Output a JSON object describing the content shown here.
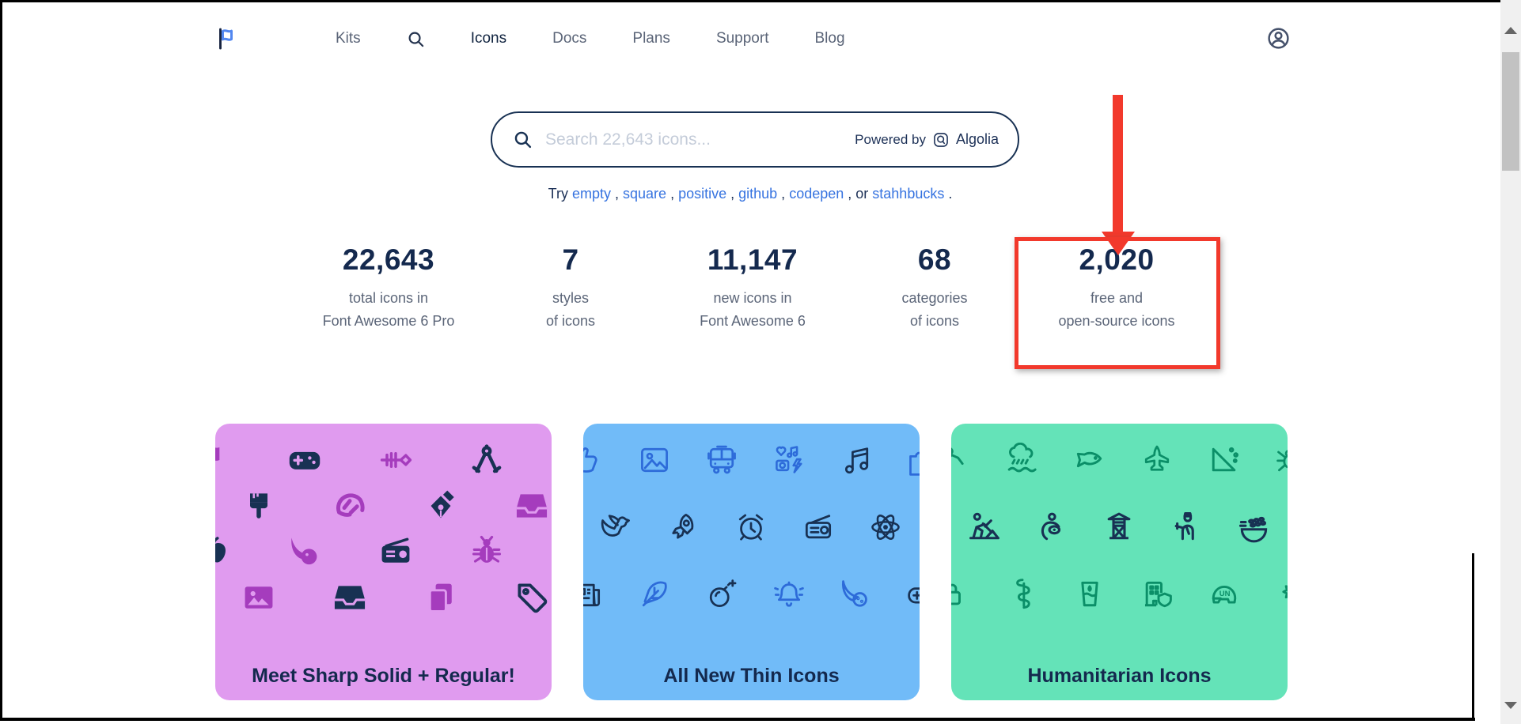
{
  "nav": {
    "logo_icon": "font-awesome-flag",
    "items": [
      {
        "label": "Kits"
      },
      {
        "icon": "search"
      },
      {
        "label": "Icons",
        "active": true
      },
      {
        "label": "Docs"
      },
      {
        "label": "Plans"
      },
      {
        "label": "Support"
      },
      {
        "label": "Blog"
      }
    ],
    "user_icon": "circle-user"
  },
  "search": {
    "placeholder": "Search 22,643 icons...",
    "powered_by": "Powered by",
    "provider": "Algolia"
  },
  "suggestions": {
    "prefix": "Try ",
    "links": [
      "empty",
      "square",
      "positive",
      "github",
      "codepen",
      "stahhbucks"
    ],
    "separators": [
      " , ",
      " , ",
      " , ",
      " , ",
      " , or ",
      " ."
    ]
  },
  "stats": [
    {
      "value": "22,643",
      "line1": "total icons in",
      "line2": "Font Awesome 6 Pro"
    },
    {
      "value": "7",
      "line1": "styles",
      "line2": "of icons"
    },
    {
      "value": "11,147",
      "line1": "new icons in",
      "line2": "Font Awesome 6"
    },
    {
      "value": "68",
      "line1": "categories",
      "line2": "of icons"
    },
    {
      "value": "2,020",
      "line1": "free and",
      "line2": "open-source icons",
      "highlighted": true
    }
  ],
  "annotation": {
    "type": "red-arrow-and-box",
    "highlighted_stat": "2,020",
    "color": "#f2392c"
  },
  "cards": [
    {
      "title": "Meet Sharp Solid + Regular!",
      "bg": "#e09bef",
      "accent": "#a53cbd",
      "dark": "#183153",
      "rows": [
        [
          {
            "name": "flag",
            "tone": "accent"
          },
          {
            "name": "gamepad",
            "tone": "dark"
          },
          {
            "name": "fish-bone",
            "tone": "accent"
          },
          {
            "name": "drafting-compass",
            "tone": "dark"
          }
        ],
        [
          {
            "name": "brush",
            "tone": "dark"
          },
          {
            "name": "croissant",
            "tone": "accent"
          },
          {
            "name": "pen-nib",
            "tone": "dark"
          },
          {
            "name": "inbox",
            "tone": "accent"
          }
        ],
        [
          {
            "name": "apple-whole",
            "tone": "dark"
          },
          {
            "name": "comet",
            "tone": "accent"
          },
          {
            "name": "radio",
            "tone": "dark"
          },
          {
            "name": "bug",
            "tone": "accent"
          }
        ],
        [
          {
            "name": "image",
            "tone": "accent"
          },
          {
            "name": "inbox",
            "tone": "dark"
          },
          {
            "name": "copy",
            "tone": "accent"
          },
          {
            "name": "tag",
            "tone": "dark"
          }
        ]
      ]
    },
    {
      "title": "All New Thin Icons",
      "bg": "#71bbf8",
      "accent": "#2d6bd9",
      "dark": "#183153",
      "rows": [
        [
          {
            "name": "thumbs-up",
            "tone": "accent"
          },
          {
            "name": "image-outline",
            "tone": "accent"
          },
          {
            "name": "bus",
            "tone": "accent"
          },
          {
            "name": "photo-film-music",
            "tone": "accent"
          },
          {
            "name": "music",
            "tone": "dark"
          },
          {
            "name": "puzzle-piece",
            "tone": "accent"
          }
        ],
        [
          {
            "name": "dove",
            "tone": "dark"
          },
          {
            "name": "rocket",
            "tone": "dark"
          },
          {
            "name": "alarm-clock",
            "tone": "dark"
          },
          {
            "name": "radio-outline",
            "tone": "dark"
          },
          {
            "name": "atom",
            "tone": "dark"
          }
        ],
        [
          {
            "name": "newspaper",
            "tone": "dark"
          },
          {
            "name": "feather",
            "tone": "accent"
          },
          {
            "name": "bomb",
            "tone": "dark"
          },
          {
            "name": "bell",
            "tone": "accent"
          },
          {
            "name": "comet-outline",
            "tone": "accent"
          },
          {
            "name": "gamepad-outline",
            "tone": "dark"
          }
        ]
      ]
    },
    {
      "title": "Humanitarian Icons",
      "bg": "#64e3b8",
      "accent": "#0b8f68",
      "dark": "#183153",
      "rows": [
        [
          {
            "name": "person-falling",
            "tone": "accent"
          },
          {
            "name": "cloud-showers-water",
            "tone": "accent"
          },
          {
            "name": "fish",
            "tone": "accent"
          },
          {
            "name": "jet-fighter",
            "tone": "accent"
          },
          {
            "name": "landslide",
            "tone": "accent"
          },
          {
            "name": "spider",
            "tone": "accent"
          }
        ],
        [
          {
            "name": "person-digging",
            "tone": "dark"
          },
          {
            "name": "person-nursing",
            "tone": "dark"
          },
          {
            "name": "tower-observation",
            "tone": "dark"
          },
          {
            "name": "person-military",
            "tone": "dark"
          },
          {
            "name": "bowl-rice",
            "tone": "dark"
          }
        ],
        [
          {
            "name": "lock",
            "tone": "accent"
          },
          {
            "name": "staff-snake",
            "tone": "accent"
          },
          {
            "name": "glass-water",
            "tone": "accent"
          },
          {
            "name": "building-shield",
            "tone": "accent"
          },
          {
            "name": "helmet-un",
            "tone": "accent"
          },
          {
            "name": "sun-plant-wilt",
            "tone": "accent"
          }
        ]
      ]
    }
  ],
  "colors": {
    "navy": "#183153",
    "nav_gray": "#5b6578",
    "link_blue": "#3673e0",
    "placeholder_gray": "#c4ccd9",
    "logo_blue": "#5287f0",
    "annotation_red": "#f2392c",
    "scrollbar_track": "#f0f0f0",
    "scrollbar_thumb": "#c2c2c2",
    "scrollbar_arrow": "#666666"
  }
}
